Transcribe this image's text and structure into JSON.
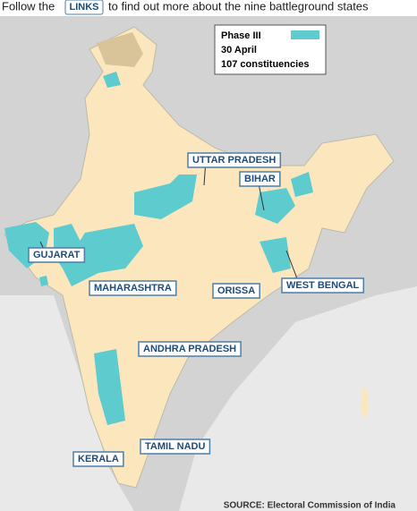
{
  "header": {
    "before": "Follow the",
    "link": "LINKS",
    "after": "to find out more about the nine battleground states"
  },
  "legend": {
    "title": "Phase III",
    "date": "30 April",
    "constituencies": "107 constituencies"
  },
  "states": [
    "UTTAR PRADESH",
    "BIHAR",
    "GUJARAT",
    "MAHARASHTRA",
    "ORISSA",
    "WEST BENGAL",
    "ANDHRA PRADESH",
    "TAMIL NADU",
    "KERALA"
  ],
  "source": "SOURCE: Electoral Commission of India"
}
